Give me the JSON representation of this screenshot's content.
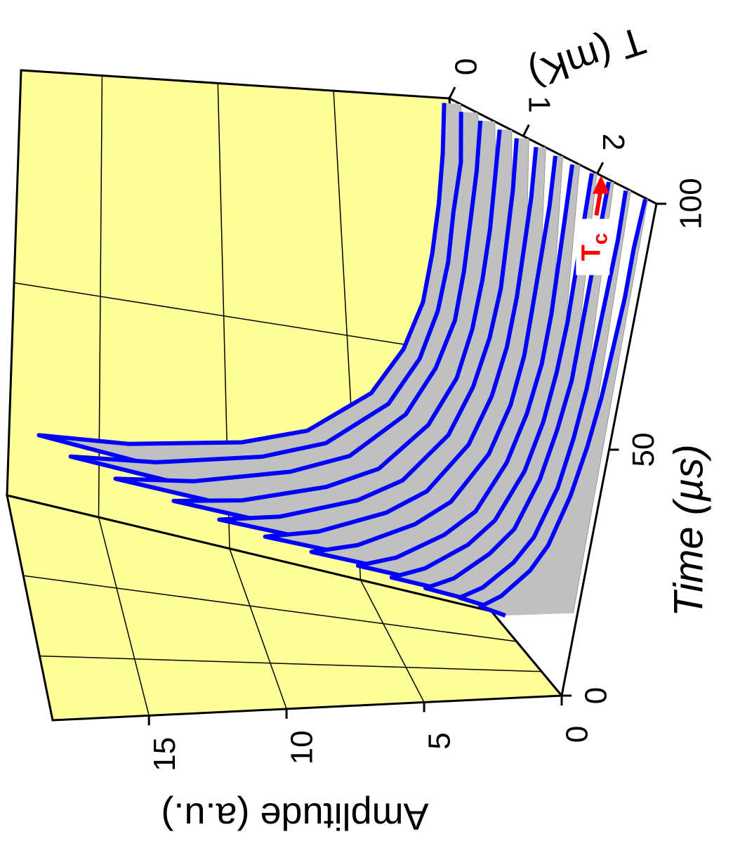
{
  "chart_data": {
    "type": "waterfall3d",
    "xlabel": "Time (µs)",
    "ylabel": "Amplitude (a.u.)",
    "zlabel": "T (mK)",
    "xlim": [
      0,
      100
    ],
    "xticks": [
      0,
      50,
      100
    ],
    "ylim": [
      0,
      18.5
    ],
    "yticks": [
      0,
      5,
      10,
      15
    ],
    "zlim": [
      0,
      2.8
    ],
    "zticks": [
      0,
      1,
      2
    ],
    "color": "#0000ff",
    "fill_color": "#c0c0c0",
    "wall_color": "#ffff99",
    "grid": true,
    "x": [
      16,
      18,
      20,
      25,
      30,
      40,
      50,
      60,
      70,
      80,
      90,
      100
    ],
    "series": [
      {
        "z": 0.15,
        "values": [
          12.3,
          17.5,
          14,
          9.6,
          7,
          4.4,
          3,
          2.1,
          1.6,
          1.2,
          0.9,
          0.7
        ]
      },
      {
        "z": 0.38,
        "values": [
          11.6,
          16.5,
          13.2,
          9.1,
          6.6,
          4.1,
          2.8,
          2,
          1.5,
          1.2,
          0.8,
          0.7
        ]
      },
      {
        "z": 0.61,
        "values": [
          10.5,
          15,
          12,
          8.3,
          6,
          3.8,
          2.6,
          1.8,
          1.4,
          1.1,
          0.8,
          0.6
        ]
      },
      {
        "z": 0.84,
        "values": [
          9.1,
          13,
          10.4,
          7.2,
          5.2,
          3.3,
          2.2,
          1.6,
          1.2,
          0.9,
          0.7,
          0.5
        ]
      },
      {
        "z": 1.07,
        "values": [
          8,
          11.5,
          9.2,
          6.3,
          4.6,
          2.9,
          2,
          1.4,
          1,
          0.8,
          0.6,
          0.5
        ]
      },
      {
        "z": 1.3,
        "values": [
          7,
          10,
          8,
          5.5,
          4,
          2.5,
          1.7,
          1.2,
          0.9,
          0.7,
          0.5,
          0.4
        ]
      },
      {
        "z": 1.53,
        "values": [
          6,
          8.5,
          6.8,
          4.7,
          3.4,
          2.1,
          1.4,
          1,
          0.8,
          0.6,
          0.4,
          0.3
        ]
      },
      {
        "z": 1.76,
        "values": [
          4.9,
          7,
          5.6,
          3.9,
          2.8,
          1.8,
          1.2,
          0.8,
          0.6,
          0.5,
          0.4,
          0.3
        ]
      },
      {
        "z": 1.99,
        "values": [
          4.2,
          6,
          4.8,
          3.3,
          2.4,
          1.5,
          1,
          0.7,
          0.5,
          0.4,
          0.3,
          0.2
        ]
      },
      {
        "z": 2.22,
        "values": [
          3.5,
          5,
          4,
          2.8,
          2,
          1.3,
          0.9,
          0.6,
          0.5,
          0.4,
          0.3,
          0.2
        ]
      },
      {
        "z": 2.45,
        "values": [
          2.8,
          4,
          3.2,
          2.2,
          1.6,
          1,
          0.7,
          0.5,
          0.4,
          0.3,
          0.2,
          0.2
        ]
      },
      {
        "z": 2.68,
        "values": [
          2.5,
          3.5,
          2.8,
          1.9,
          1.4,
          0.9,
          0.6,
          0.4,
          0.3,
          0.2,
          0.2,
          0.1
        ]
      }
    ],
    "annotation": {
      "text": "T",
      "sub": "c",
      "z": 2.05
    }
  }
}
